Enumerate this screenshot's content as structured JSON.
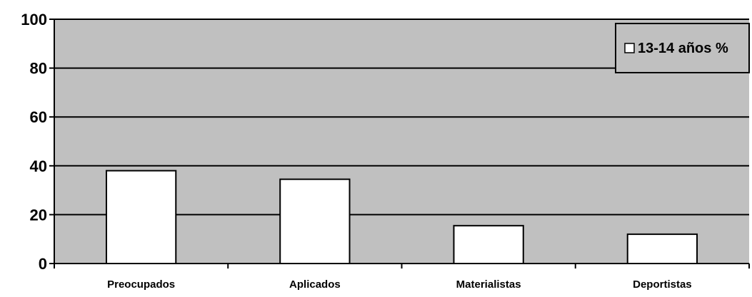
{
  "chart_data": {
    "type": "bar",
    "title": "",
    "xlabel": "",
    "ylabel": "",
    "categories": [
      "Preocupados",
      "Aplicados",
      "Materialistas",
      "Deportistas"
    ],
    "series": [
      {
        "name": "13-14 años %",
        "values": [
          38,
          34.5,
          15.5,
          12
        ],
        "color": "#ffffff"
      }
    ],
    "ylim": [
      0,
      100
    ],
    "yticks": [
      "0",
      "20",
      "40",
      "60",
      "80",
      "100"
    ],
    "grid": true,
    "legend_position": "top-right",
    "plot_background": "#c0c0c0",
    "bar_outline": "#000000"
  }
}
